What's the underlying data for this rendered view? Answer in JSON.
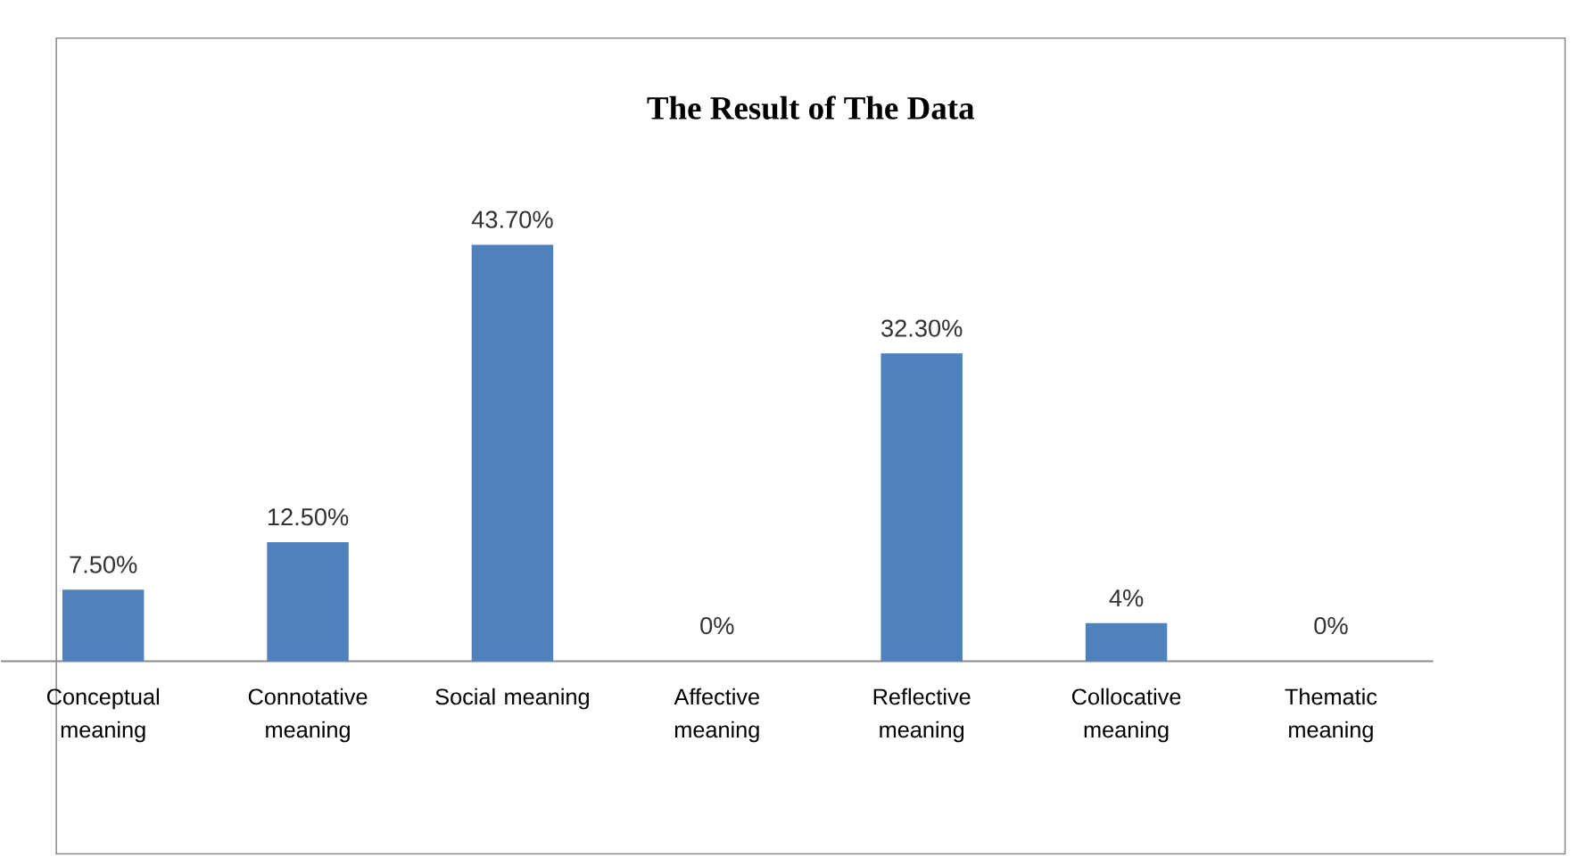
{
  "chart_data": {
    "type": "bar",
    "title": "The Result of The Data",
    "categories": [
      "Conceptual meaning",
      "Connotative meaning",
      "Social meaning",
      "Affective meaning",
      "Reflective meaning",
      "Collocative meaning",
      "Thematic meaning"
    ],
    "values": [
      7.5,
      12.5,
      43.7,
      0,
      32.3,
      4,
      0
    ],
    "value_labels": [
      "7.50%",
      "12.50%",
      "43.70%",
      "0%",
      "32.30%",
      "4%",
      "0%"
    ],
    "color": "#4f81bd"
  }
}
